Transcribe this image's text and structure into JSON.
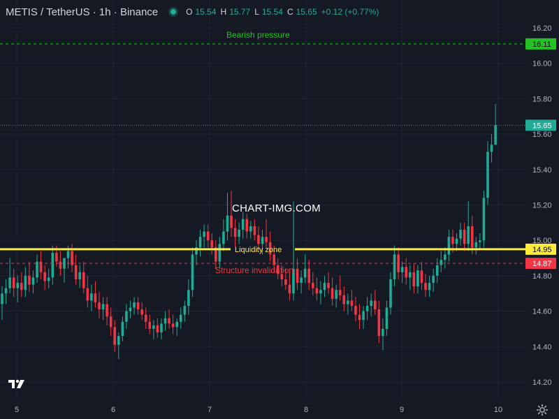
{
  "header": {
    "symbol": "METIS / TetherUS · 1h · Binance",
    "open_label": "O",
    "open": "15.54",
    "high_label": "H",
    "high": "15.77",
    "low_label": "L",
    "low": "15.54",
    "close_label": "C",
    "close": "15.65",
    "change": "+0.12 (+0.77%)"
  },
  "watermark": "CHART-IMG.COM",
  "colors": {
    "background": "#151924",
    "up": "#22ab94",
    "down": "#f23645",
    "bearish": "#22c322",
    "liquidity": "#ffeb3b",
    "invalidation": "#f23645",
    "grid": "#1f2433",
    "axis_text": "#b2b5be"
  },
  "chart_data": {
    "type": "candlestick",
    "y_ticks": [
      14.2,
      14.4,
      14.6,
      14.8,
      15.0,
      15.2,
      15.4,
      15.6,
      15.8,
      16.0,
      16.2
    ],
    "y_tick_labels": [
      "14.20",
      "14.40",
      "14.60",
      "14.80",
      "15.00",
      "15.20",
      "15.40",
      "15.60",
      "15.80",
      "16.00",
      "16.20"
    ],
    "x_tick_labels": [
      "5",
      "6",
      "7",
      "8",
      "9",
      "10"
    ],
    "ylim": [
      14.04,
      16.3
    ],
    "last_price": {
      "value": 15.65,
      "label": "15.65"
    },
    "levels": [
      {
        "name": "Bearish pressure",
        "value": 16.11,
        "label": "16.11",
        "style": "dashed",
        "color": "#22c322"
      },
      {
        "name": "Liquidity zone",
        "value": 14.95,
        "label": "14.95",
        "style": "solid",
        "color": "#ffeb3b"
      },
      {
        "name": "Structure invalidation",
        "value": 14.87,
        "label": "14.87",
        "style": "dashed",
        "color": "#f23645"
      }
    ],
    "candles": [
      [
        14.64,
        14.74,
        14.55,
        14.7
      ],
      [
        14.7,
        14.78,
        14.64,
        14.73
      ],
      [
        14.73,
        14.9,
        14.7,
        14.79
      ],
      [
        14.79,
        14.84,
        14.68,
        14.73
      ],
      [
        14.73,
        14.8,
        14.65,
        14.76
      ],
      [
        14.76,
        14.82,
        14.68,
        14.72
      ],
      [
        14.72,
        14.85,
        14.68,
        14.8
      ],
      [
        14.8,
        14.88,
        14.71,
        14.75
      ],
      [
        14.75,
        14.83,
        14.7,
        14.79
      ],
      [
        14.79,
        14.92,
        14.76,
        14.88
      ],
      [
        14.88,
        14.94,
        14.78,
        14.82
      ],
      [
        14.82,
        14.86,
        14.72,
        14.77
      ],
      [
        14.77,
        14.84,
        14.73,
        14.79
      ],
      [
        14.79,
        14.97,
        14.75,
        14.93
      ],
      [
        14.93,
        14.97,
        14.85,
        14.88
      ],
      [
        14.88,
        14.94,
        14.8,
        14.84
      ],
      [
        14.84,
        14.89,
        14.76,
        14.9
      ],
      [
        14.9,
        14.97,
        14.84,
        14.94
      ],
      [
        14.94,
        14.98,
        14.82,
        14.86
      ],
      [
        14.86,
        14.92,
        14.75,
        14.78
      ],
      [
        14.78,
        14.86,
        14.73,
        14.82
      ],
      [
        14.82,
        14.88,
        14.7,
        14.73
      ],
      [
        14.73,
        14.8,
        14.62,
        14.66
      ],
      [
        14.66,
        14.75,
        14.6,
        14.7
      ],
      [
        14.7,
        14.77,
        14.62,
        14.65
      ],
      [
        14.65,
        14.71,
        14.56,
        14.61
      ],
      [
        14.61,
        14.68,
        14.55,
        14.64
      ],
      [
        14.64,
        14.68,
        14.52,
        14.57
      ],
      [
        14.57,
        14.62,
        14.46,
        14.51
      ],
      [
        14.51,
        14.55,
        14.37,
        14.41
      ],
      [
        14.41,
        14.48,
        14.33,
        14.46
      ],
      [
        14.46,
        14.57,
        14.43,
        14.54
      ],
      [
        14.54,
        14.64,
        14.5,
        14.6
      ],
      [
        14.6,
        14.66,
        14.56,
        14.62
      ],
      [
        14.62,
        14.68,
        14.58,
        14.65
      ],
      [
        14.65,
        14.68,
        14.58,
        14.61
      ],
      [
        14.61,
        14.65,
        14.55,
        14.58
      ],
      [
        14.58,
        14.62,
        14.5,
        14.54
      ],
      [
        14.54,
        14.58,
        14.47,
        14.5
      ],
      [
        14.5,
        14.55,
        14.44,
        14.52
      ],
      [
        14.52,
        14.56,
        14.45,
        14.48
      ],
      [
        14.48,
        14.56,
        14.44,
        14.53
      ],
      [
        14.53,
        14.6,
        14.49,
        14.56
      ],
      [
        14.56,
        14.61,
        14.5,
        14.53
      ],
      [
        14.53,
        14.58,
        14.47,
        14.51
      ],
      [
        14.51,
        14.56,
        14.46,
        14.54
      ],
      [
        14.54,
        14.62,
        14.5,
        14.58
      ],
      [
        14.58,
        14.66,
        14.54,
        14.63
      ],
      [
        14.63,
        14.78,
        14.58,
        14.72
      ],
      [
        14.72,
        14.96,
        14.68,
        14.92
      ],
      [
        14.92,
        15.0,
        14.86,
        14.96
      ],
      [
        14.96,
        15.06,
        14.91,
        15.02
      ],
      [
        15.02,
        15.09,
        14.96,
        15.05
      ],
      [
        15.05,
        15.09,
        14.96,
        15.0
      ],
      [
        15.0,
        15.04,
        14.92,
        14.96
      ],
      [
        14.96,
        15.0,
        14.84,
        14.88
      ],
      [
        14.88,
        15.02,
        14.84,
        14.98
      ],
      [
        14.98,
        15.12,
        14.94,
        15.05
      ],
      [
        15.05,
        15.27,
        15.0,
        15.14
      ],
      [
        15.14,
        15.28,
        15.02,
        15.07
      ],
      [
        15.07,
        15.12,
        14.96,
        15.02
      ],
      [
        15.02,
        15.1,
        14.98,
        15.06
      ],
      [
        15.06,
        15.16,
        15.01,
        15.12
      ],
      [
        15.12,
        15.15,
        15.01,
        15.05
      ],
      [
        15.05,
        15.11,
        15.01,
        15.08
      ],
      [
        15.08,
        15.12,
        15.0,
        15.03
      ],
      [
        15.03,
        15.08,
        14.95,
        14.98
      ],
      [
        14.98,
        15.06,
        14.92,
        15.02
      ],
      [
        15.02,
        15.12,
        14.96,
        14.99
      ],
      [
        14.99,
        15.05,
        14.88,
        14.92
      ],
      [
        14.92,
        14.97,
        14.82,
        14.86
      ],
      [
        14.86,
        14.9,
        14.78,
        14.81
      ],
      [
        14.81,
        14.86,
        14.74,
        14.78
      ],
      [
        14.78,
        14.84,
        14.72,
        14.75
      ],
      [
        14.75,
        14.82,
        14.66,
        14.7
      ],
      [
        14.7,
        15.22,
        14.66,
        14.84
      ],
      [
        14.84,
        14.9,
        14.72,
        14.76
      ],
      [
        14.76,
        14.83,
        14.7,
        14.79
      ],
      [
        14.79,
        14.92,
        14.76,
        14.84
      ],
      [
        14.84,
        14.89,
        14.72,
        14.76
      ],
      [
        14.76,
        14.82,
        14.69,
        14.73
      ],
      [
        14.73,
        14.79,
        14.66,
        14.7
      ],
      [
        14.7,
        14.77,
        14.64,
        14.72
      ],
      [
        14.72,
        14.8,
        14.68,
        14.76
      ],
      [
        14.76,
        14.82,
        14.7,
        14.73
      ],
      [
        14.73,
        14.79,
        14.63,
        14.67
      ],
      [
        14.67,
        14.75,
        14.62,
        14.72
      ],
      [
        14.72,
        14.8,
        14.66,
        14.69
      ],
      [
        14.69,
        14.74,
        14.6,
        14.64
      ],
      [
        14.64,
        14.7,
        14.58,
        14.66
      ],
      [
        14.66,
        14.72,
        14.6,
        14.63
      ],
      [
        14.63,
        14.68,
        14.54,
        14.58
      ],
      [
        14.58,
        14.64,
        14.5,
        14.55
      ],
      [
        14.55,
        14.63,
        14.5,
        14.6
      ],
      [
        14.6,
        14.68,
        14.55,
        14.63
      ],
      [
        14.63,
        14.7,
        14.57,
        14.66
      ],
      [
        14.66,
        14.72,
        14.58,
        14.61
      ],
      [
        14.61,
        14.66,
        14.42,
        14.46
      ],
      [
        14.46,
        14.56,
        14.38,
        14.5
      ],
      [
        14.5,
        14.66,
        14.46,
        14.62
      ],
      [
        14.62,
        14.82,
        14.58,
        14.78
      ],
      [
        14.78,
        14.97,
        14.74,
        14.92
      ],
      [
        14.92,
        14.96,
        14.78,
        14.82
      ],
      [
        14.82,
        14.88,
        14.76,
        14.85
      ],
      [
        14.85,
        14.9,
        14.75,
        14.79
      ],
      [
        14.79,
        14.86,
        14.72,
        14.82
      ],
      [
        14.82,
        14.87,
        14.7,
        14.74
      ],
      [
        14.74,
        14.86,
        14.7,
        14.83
      ],
      [
        14.83,
        14.88,
        14.72,
        14.76
      ],
      [
        14.76,
        14.81,
        14.68,
        14.72
      ],
      [
        14.72,
        14.8,
        14.68,
        14.76
      ],
      [
        14.76,
        14.84,
        14.71,
        14.8
      ],
      [
        14.8,
        14.9,
        14.76,
        14.86
      ],
      [
        14.86,
        14.94,
        14.82,
        14.89
      ],
      [
        14.89,
        14.96,
        14.84,
        14.92
      ],
      [
        14.92,
        15.06,
        14.88,
        15.02
      ],
      [
        15.02,
        15.06,
        14.93,
        14.98
      ],
      [
        14.98,
        15.04,
        14.94,
        15.01
      ],
      [
        15.01,
        15.1,
        14.97,
        15.06
      ],
      [
        15.06,
        15.1,
        14.94,
        14.98
      ],
      [
        14.98,
        15.22,
        14.94,
        15.08
      ],
      [
        15.08,
        15.14,
        14.92,
        14.96
      ],
      [
        14.96,
        15.02,
        14.92,
        14.99
      ],
      [
        14.99,
        15.04,
        14.95,
        15.0
      ],
      [
        15.0,
        15.28,
        14.96,
        15.24
      ],
      [
        15.24,
        15.56,
        15.2,
        15.5
      ],
      [
        15.5,
        15.6,
        15.44,
        15.54
      ],
      [
        15.54,
        15.77,
        15.54,
        15.65
      ]
    ]
  }
}
